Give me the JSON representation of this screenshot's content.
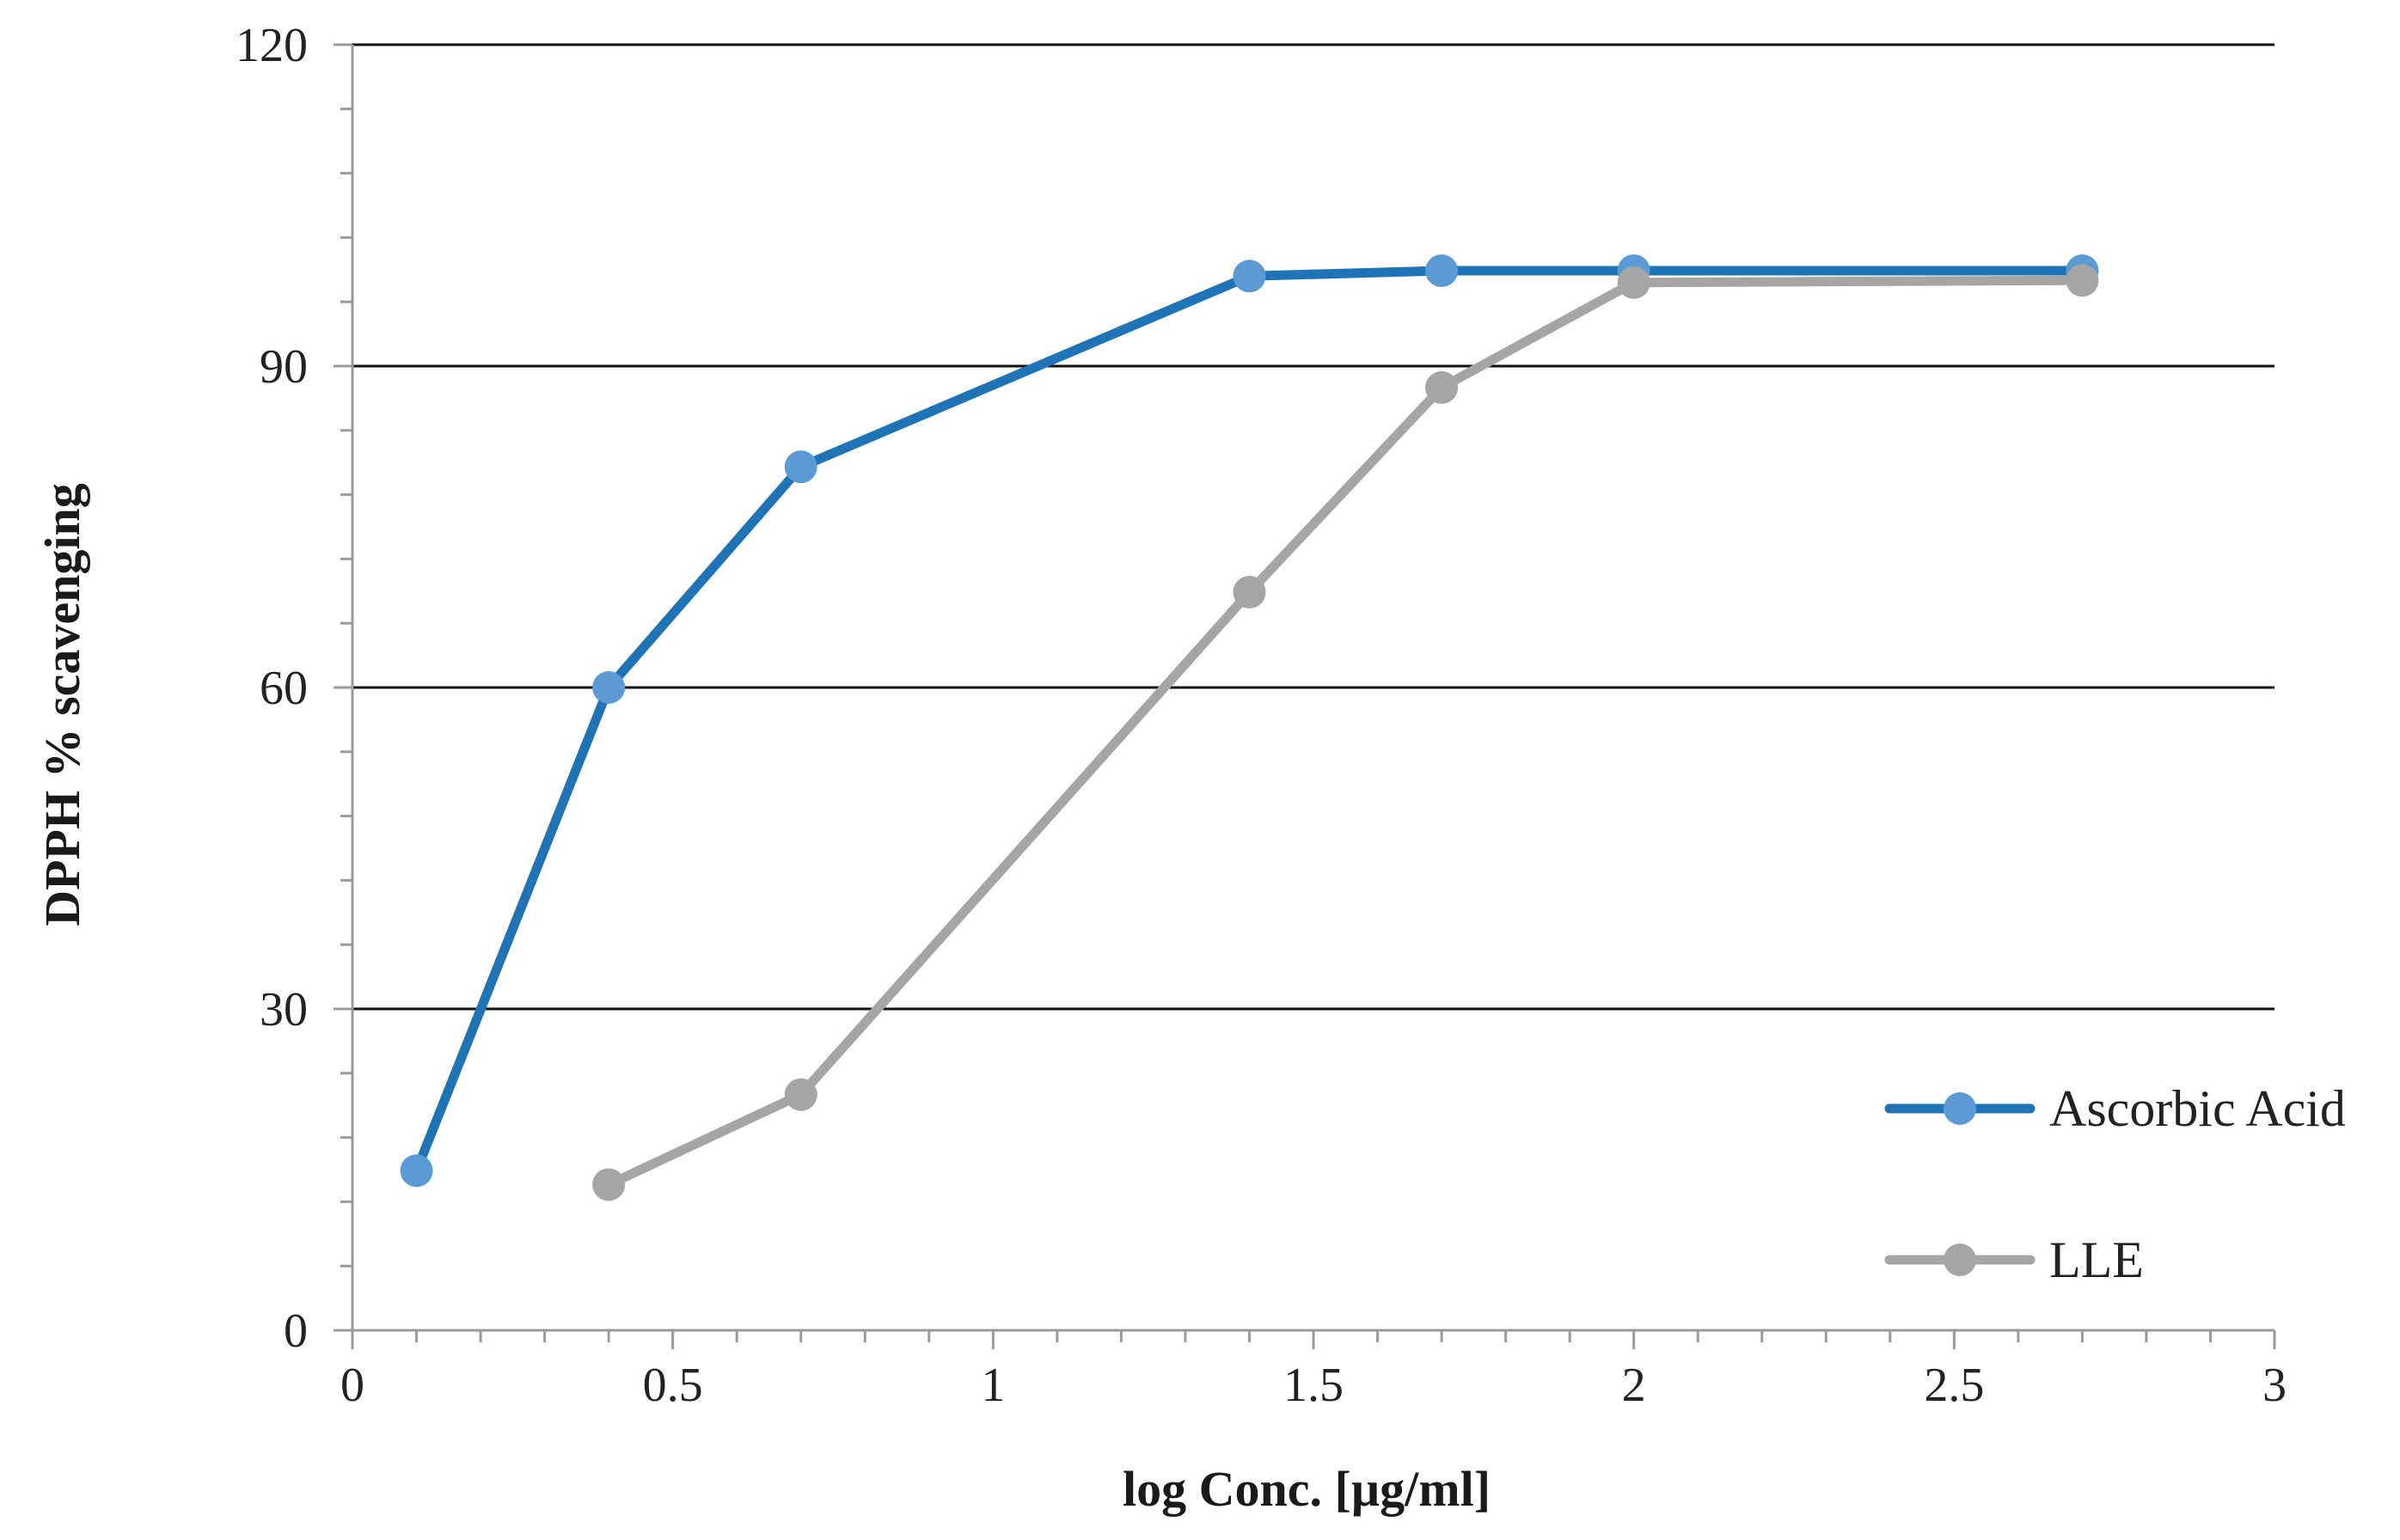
{
  "chart_data": {
    "type": "line",
    "title": "",
    "xlabel": "log Conc. [µg/ml]",
    "ylabel": "DPPH % scavenging",
    "xlim": [
      0,
      3
    ],
    "ylim": [
      0,
      120
    ],
    "x_ticks": [
      0,
      0.5,
      1,
      1.5,
      2,
      2.5,
      3
    ],
    "x_tick_labels": [
      "0",
      "0.5",
      "1",
      "1.5",
      "2",
      "2.5",
      "3"
    ],
    "x_minor_step": 0.1,
    "y_ticks": [
      0,
      30,
      60,
      90,
      120
    ],
    "y_tick_labels": [
      "0",
      "30",
      "60",
      "90",
      "120"
    ],
    "y_minor_step": 6,
    "grid": "horizontal major",
    "legend_position": "right",
    "series": [
      {
        "name": "Ascorbic Acid",
        "line_color": "#1f73b7",
        "marker_color": "#5b9bd5",
        "points": [
          {
            "x": 0.1,
            "y": 14.9
          },
          {
            "x": 0.4,
            "y": 60.0
          },
          {
            "x": 0.7,
            "y": 80.6
          },
          {
            "x": 1.4,
            "y": 98.4
          },
          {
            "x": 1.7,
            "y": 98.9
          },
          {
            "x": 2.0,
            "y": 98.9
          },
          {
            "x": 2.7,
            "y": 98.9
          }
        ]
      },
      {
        "name": "LLE",
        "line_color": "#a5a5a5",
        "marker_color": "#a5a5a5",
        "points": [
          {
            "x": 0.4,
            "y": 13.6
          },
          {
            "x": 0.7,
            "y": 22.0
          },
          {
            "x": 1.4,
            "y": 68.9
          },
          {
            "x": 1.7,
            "y": 88.0
          },
          {
            "x": 2.0,
            "y": 97.8
          },
          {
            "x": 2.7,
            "y": 98.0
          }
        ]
      }
    ]
  }
}
